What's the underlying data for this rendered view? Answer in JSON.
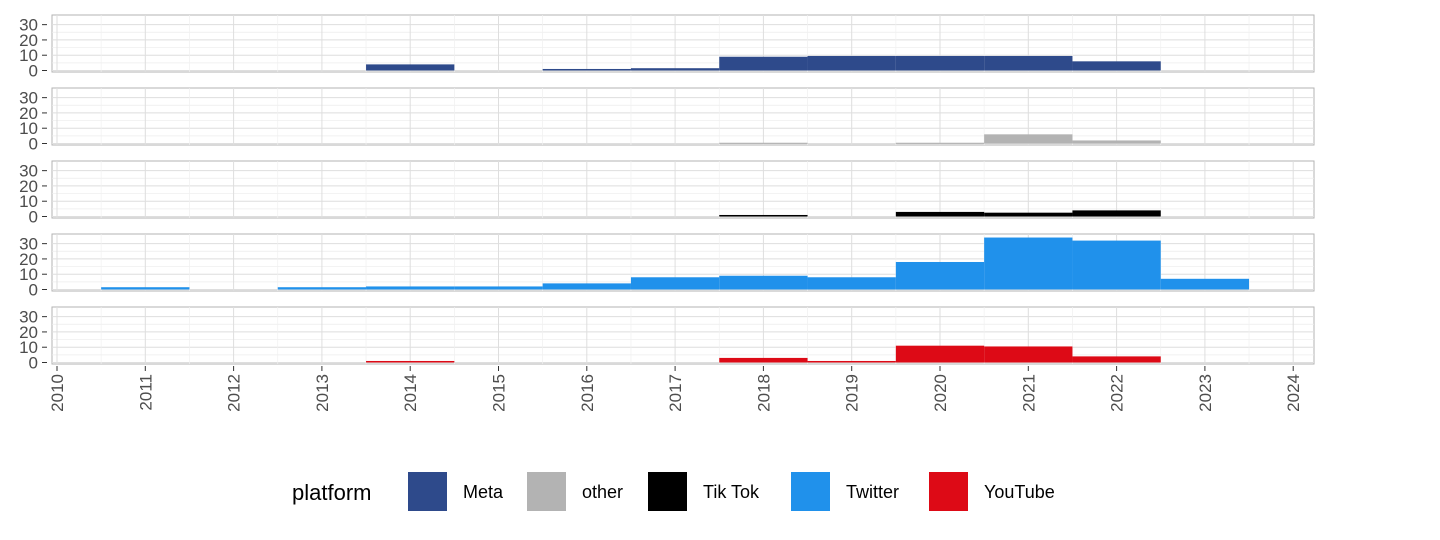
{
  "chart_data": {
    "type": "bar",
    "subtype": "histogram-facets",
    "x": [
      2011,
      2012,
      2013,
      2014,
      2015,
      2016,
      2017,
      2018,
      2019,
      2020,
      2021,
      2022,
      2023
    ],
    "xlim": [
      2010,
      2024
    ],
    "x_ticks": [
      "2010",
      "2011",
      "2012",
      "2013",
      "2014",
      "2015",
      "2016",
      "2017",
      "2018",
      "2019",
      "2020",
      "2021",
      "2022",
      "2023",
      "2024"
    ],
    "ylim": [
      0,
      35
    ],
    "y_ticks": [
      "0",
      "10",
      "20",
      "30"
    ],
    "grid": true,
    "series": [
      {
        "name": "Meta",
        "color": "#2E4A8B",
        "values": [
          0,
          0,
          0,
          4,
          0,
          1,
          1.5,
          9,
          9.5,
          9.5,
          9.5,
          6,
          0
        ]
      },
      {
        "name": "other",
        "color": "#B3B3B3",
        "values": [
          0,
          0,
          0,
          0,
          0,
          0,
          0,
          0.5,
          0,
          0.5,
          6,
          2,
          0
        ]
      },
      {
        "name": "Tik Tok",
        "color": "#000000",
        "values": [
          0,
          0,
          0,
          0,
          0,
          0,
          0,
          1,
          0,
          3,
          2.5,
          4,
          0
        ]
      },
      {
        "name": "Twitter",
        "color": "#2091EB",
        "values": [
          1.5,
          0,
          1.5,
          2,
          2,
          4,
          8,
          9,
          8,
          18,
          34,
          32,
          7
        ]
      },
      {
        "name": "YouTube",
        "color": "#DD0A16",
        "values": [
          0,
          0,
          0,
          1,
          0,
          0,
          0,
          3,
          1,
          11,
          10.5,
          4,
          0
        ]
      }
    ],
    "legend": {
      "title": "platform",
      "position": "bottom"
    }
  }
}
